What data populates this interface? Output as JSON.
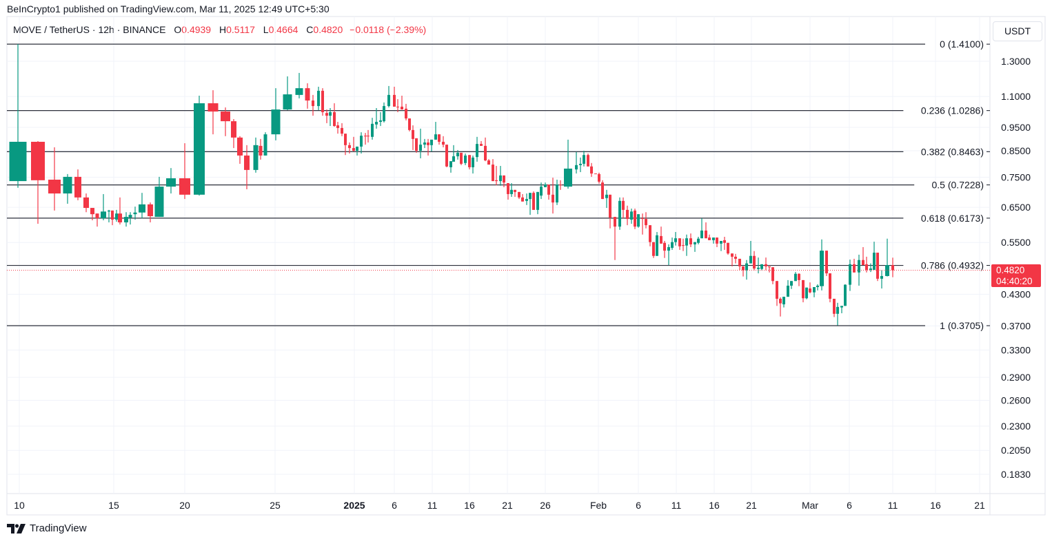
{
  "published": "BeInCrypto1 published on TradingView.com, Mar 11, 2025 12:49 UTC+5:30",
  "legend": {
    "symbol": "MOVE / TetherUS · 12h · BINANCE",
    "o_label": "O",
    "o": "0.4939",
    "h_label": "H",
    "h": "0.5117",
    "l_label": "L",
    "l": "0.4664",
    "c_label": "C",
    "c": "0.4820",
    "change": "−0.0118 (−2.39%)"
  },
  "currency_button": "USDT",
  "current_price": {
    "value": "0.4820",
    "countdown": "04:40:20",
    "color": "#F23645"
  },
  "footer": {
    "brand": "TradingView",
    "logo_icon": "tradingview-logo-icon"
  },
  "colors": {
    "up": "#089981",
    "down": "#F23645",
    "fib_line": "#2a2e39",
    "grid": "#f0f3fa"
  },
  "chart_data": {
    "type": "candlestick",
    "title": "",
    "y_scale": "log",
    "ylim": [
      0.17,
      1.45
    ],
    "grid": true,
    "y_ticks": [
      "1.3000",
      "1.1000",
      "0.9500",
      "0.8500",
      "0.7500",
      "0.6500",
      "0.5500",
      "0.4300",
      "0.3700",
      "0.3300",
      "0.2900",
      "0.2600",
      "0.2300",
      "0.2050",
      "0.1830"
    ],
    "x_ticks": [
      "10",
      "15",
      "20",
      "25",
      "2025",
      "6",
      "11",
      "16",
      "21",
      "26",
      "Feb",
      "6",
      "11",
      "16",
      "21",
      "Mar",
      "6",
      "11",
      "16",
      "21"
    ],
    "fib_levels": [
      {
        "label": "0 (1.4100)",
        "value": 1.41
      },
      {
        "label": "0.236 (1.0286)",
        "value": 1.0286
      },
      {
        "label": "0.382 (0.8463)",
        "value": 0.8463
      },
      {
        "label": "0.5 (0.7228)",
        "value": 0.7228
      },
      {
        "label": "0.618 (0.6173)",
        "value": 0.6173
      },
      {
        "label": "0.786 (0.4932)",
        "value": 0.4932
      },
      {
        "label": "1 (0.3705)",
        "value": 0.3705
      }
    ],
    "candles_ohlc": [
      [
        0.736,
        1.41,
        0.713,
        0.887
      ],
      [
        0.887,
        0.89,
        0.601,
        0.739
      ],
      [
        0.741,
        0.864,
        0.64,
        0.694
      ],
      [
        0.694,
        0.761,
        0.661,
        0.751
      ],
      [
        0.751,
        0.778,
        0.672,
        0.681
      ],
      [
        0.681,
        0.694,
        0.635,
        0.648
      ],
      [
        0.648,
        0.648,
        0.611,
        0.629
      ],
      [
        0.631,
        0.631,
        0.593,
        0.617
      ],
      [
        0.617,
        0.692,
        0.611,
        0.637
      ],
      [
        0.637,
        0.642,
        0.605,
        0.64
      ],
      [
        0.64,
        0.64,
        0.597,
        0.613
      ],
      [
        0.613,
        0.642,
        0.607,
        0.631
      ],
      [
        0.631,
        0.681,
        0.599,
        0.605
      ],
      [
        0.605,
        0.635,
        0.593,
        0.621
      ],
      [
        0.619,
        0.635,
        0.599,
        0.627
      ],
      [
        0.629,
        0.652,
        0.613,
        0.634
      ],
      [
        0.634,
        0.696,
        0.617,
        0.659
      ],
      [
        0.659,
        0.665,
        0.605,
        0.623
      ],
      [
        0.621,
        0.751,
        0.621,
        0.717
      ],
      [
        0.717,
        0.783,
        0.694,
        0.746
      ],
      [
        0.746,
        0.881,
        0.676,
        0.69
      ],
      [
        0.69,
        1.104,
        0.687,
        1.065
      ],
      [
        1.065,
        1.133,
        0.919,
        1.024
      ],
      [
        1.024,
        1.044,
        0.911,
        0.978
      ],
      [
        0.978,
        0.988,
        0.861,
        0.905
      ],
      [
        0.905,
        0.911,
        0.799,
        0.831
      ],
      [
        0.831,
        0.873,
        0.708,
        0.776
      ],
      [
        0.776,
        0.905,
        0.766,
        0.873
      ],
      [
        0.87,
        0.899,
        0.815,
        0.831
      ],
      [
        0.831,
        0.928,
        0.831,
        0.919
      ],
      [
        0.919,
        1.144,
        0.893,
        1.034
      ],
      [
        1.034,
        1.21,
        1.031,
        1.111
      ],
      [
        1.108,
        1.23,
        1.09,
        1.144
      ],
      [
        1.144,
        1.171,
        1.038,
        1.079
      ],
      [
        1.079,
        1.108,
        1.004,
        1.051
      ],
      [
        1.051,
        1.152,
        1.031,
        1.13
      ],
      [
        1.13,
        1.144,
        1.004,
        1.021
      ],
      [
        1.017,
        1.034,
        0.969,
        1.004
      ],
      [
        1.004,
        1.041,
        0.956,
        1.021
      ],
      [
        1.021,
        1.065,
        0.953,
        0.956
      ],
      [
        0.959,
        0.975,
        0.922,
        0.947
      ],
      [
        0.947,
        0.969,
        0.911,
        0.922
      ],
      [
        0.922,
        0.922,
        0.833,
        0.873
      ],
      [
        0.873,
        0.884,
        0.839,
        0.861
      ],
      [
        0.861,
        0.908,
        0.847,
        0.85
      ],
      [
        0.85,
        0.867,
        0.831,
        0.867
      ],
      [
        0.867,
        0.928,
        0.839,
        0.913
      ],
      [
        0.913,
        0.925,
        0.875,
        0.911
      ],
      [
        0.913,
        0.938,
        0.884,
        0.91
      ],
      [
        0.908,
        0.994,
        0.896,
        0.966
      ],
      [
        0.963,
        1.041,
        0.944,
        0.975
      ],
      [
        0.975,
        1.021,
        0.956,
        0.982
      ],
      [
        0.978,
        1.069,
        0.972,
        1.051
      ],
      [
        1.051,
        1.156,
        1.044,
        1.108
      ],
      [
        1.108,
        1.152,
        1.048,
        1.048
      ],
      [
        1.048,
        1.086,
        1.021,
        1.045
      ],
      [
        1.048,
        1.104,
        1.034,
        1.034
      ],
      [
        1.038,
        1.062,
        0.982,
        0.991
      ],
      [
        0.991,
        0.991,
        0.932,
        0.938
      ],
      [
        0.938,
        0.959,
        0.853,
        0.899
      ],
      [
        0.902,
        0.902,
        0.842,
        0.85
      ],
      [
        0.85,
        0.944,
        0.82,
        0.875
      ],
      [
        0.875,
        0.899,
        0.861,
        0.884
      ],
      [
        0.884,
        0.899,
        0.831,
        0.873
      ],
      [
        0.873,
        0.896,
        0.847,
        0.896
      ],
      [
        0.896,
        0.975,
        0.896,
        0.919
      ],
      [
        0.919,
        0.919,
        0.875,
        0.887
      ],
      [
        0.887,
        0.911,
        0.864,
        0.875
      ],
      [
        0.875,
        0.875,
        0.786,
        0.789
      ],
      [
        0.786,
        0.809,
        0.766,
        0.809
      ],
      [
        0.807,
        0.873,
        0.807,
        0.828
      ],
      [
        0.828,
        0.853,
        0.815,
        0.842
      ],
      [
        0.842,
        0.842,
        0.794,
        0.799
      ],
      [
        0.802,
        0.839,
        0.794,
        0.831
      ],
      [
        0.833,
        0.833,
        0.778,
        0.786
      ],
      [
        0.786,
        0.831,
        0.763,
        0.823
      ],
      [
        0.825,
        0.908,
        0.807,
        0.878
      ],
      [
        0.878,
        0.89,
        0.87,
        0.87
      ],
      [
        0.87,
        0.905,
        0.809,
        0.812
      ],
      [
        0.812,
        0.817,
        0.796,
        0.796
      ],
      [
        0.796,
        0.817,
        0.736,
        0.736
      ],
      [
        0.739,
        0.791,
        0.722,
        0.736
      ],
      [
        0.736,
        0.791,
        0.72,
        0.756
      ],
      [
        0.756,
        0.756,
        0.715,
        0.731
      ],
      [
        0.729,
        0.729,
        0.674,
        0.692
      ],
      [
        0.692,
        0.729,
        0.683,
        0.706
      ],
      [
        0.706,
        0.706,
        0.683,
        0.699
      ],
      [
        0.699,
        0.699,
        0.676,
        0.681
      ],
      [
        0.681,
        0.692,
        0.668,
        0.668
      ],
      [
        0.67,
        0.694,
        0.657,
        0.676
      ],
      [
        0.676,
        0.696,
        0.627,
        0.696
      ],
      [
        0.696,
        0.701,
        0.642,
        0.642
      ],
      [
        0.642,
        0.699,
        0.629,
        0.699
      ],
      [
        0.687,
        0.731,
        0.676,
        0.717
      ],
      [
        0.715,
        0.731,
        0.715,
        0.724
      ],
      [
        0.724,
        0.724,
        0.674,
        0.69
      ],
      [
        0.69,
        0.748,
        0.631,
        0.665
      ],
      [
        0.665,
        0.741,
        0.657,
        0.724
      ],
      [
        0.724,
        0.739,
        0.706,
        0.722
      ],
      [
        0.717,
        0.896,
        0.71,
        0.781
      ],
      [
        0.778,
        0.845,
        0.763,
        0.794
      ],
      [
        0.794,
        0.823,
        0.768,
        0.799
      ],
      [
        0.799,
        0.85,
        0.789,
        0.833
      ],
      [
        0.833,
        0.839,
        0.789,
        0.789
      ],
      [
        0.789,
        0.802,
        0.751,
        0.763
      ],
      [
        0.763,
        0.763,
        0.761,
        0.761
      ],
      [
        0.761,
        0.766,
        0.727,
        0.734
      ],
      [
        0.731,
        0.739,
        0.676,
        0.676
      ],
      [
        0.679,
        0.706,
        0.648,
        0.69
      ],
      [
        0.69,
        0.69,
        0.588,
        0.619
      ],
      [
        0.621,
        0.621,
        0.506,
        0.593
      ],
      [
        0.593,
        0.681,
        0.584,
        0.67
      ],
      [
        0.67,
        0.681,
        0.617,
        0.642
      ],
      [
        0.642,
        0.655,
        0.597,
        0.615
      ],
      [
        0.613,
        0.646,
        0.601,
        0.637
      ],
      [
        0.64,
        0.646,
        0.586,
        0.593
      ],
      [
        0.593,
        0.629,
        0.59,
        0.629
      ],
      [
        0.617,
        0.631,
        0.571,
        0.615
      ],
      [
        0.615,
        0.635,
        0.588,
        0.597
      ],
      [
        0.597,
        0.597,
        0.54,
        0.551
      ],
      [
        0.551,
        0.551,
        0.511,
        0.516
      ],
      [
        0.516,
        0.578,
        0.516,
        0.569
      ],
      [
        0.567,
        0.593,
        0.547,
        0.547
      ],
      [
        0.549,
        0.554,
        0.511,
        0.529
      ],
      [
        0.529,
        0.545,
        0.494,
        0.538
      ],
      [
        0.536,
        0.563,
        0.531,
        0.551
      ],
      [
        0.551,
        0.578,
        0.542,
        0.561
      ],
      [
        0.561,
        0.561,
        0.531,
        0.54
      ],
      [
        0.543,
        0.56,
        0.528,
        0.542
      ],
      [
        0.542,
        0.571,
        0.516,
        0.561
      ],
      [
        0.561,
        0.574,
        0.538,
        0.545
      ],
      [
        0.545,
        0.551,
        0.526,
        0.551
      ],
      [
        0.549,
        0.565,
        0.545,
        0.56
      ],
      [
        0.561,
        0.617,
        0.561,
        0.582
      ],
      [
        0.582,
        0.605,
        0.561,
        0.561
      ],
      [
        0.563,
        0.571,
        0.556,
        0.556
      ],
      [
        0.556,
        0.563,
        0.547,
        0.563
      ],
      [
        0.563,
        0.563,
        0.538,
        0.547
      ],
      [
        0.547,
        0.554,
        0.528,
        0.554
      ],
      [
        0.556,
        0.565,
        0.531,
        0.549
      ],
      [
        0.549,
        0.549,
        0.519,
        0.522
      ],
      [
        0.522,
        0.522,
        0.491,
        0.514
      ],
      [
        0.514,
        0.521,
        0.498,
        0.509
      ],
      [
        0.509,
        0.509,
        0.483,
        0.491
      ],
      [
        0.491,
        0.491,
        0.468,
        0.482
      ],
      [
        0.482,
        0.506,
        0.461,
        0.498
      ],
      [
        0.498,
        0.554,
        0.498,
        0.516
      ],
      [
        0.516,
        0.528,
        0.482,
        0.486
      ],
      [
        0.485,
        0.512,
        0.475,
        0.488
      ],
      [
        0.485,
        0.496,
        0.482,
        0.496
      ],
      [
        0.496,
        0.512,
        0.482,
        0.491
      ],
      [
        0.491,
        0.491,
        0.477,
        0.489
      ],
      [
        0.489,
        0.489,
        0.451,
        0.458
      ],
      [
        0.458,
        0.458,
        0.407,
        0.421
      ],
      [
        0.421,
        0.424,
        0.387,
        0.412
      ],
      [
        0.41,
        0.425,
        0.404,
        0.425
      ],
      [
        0.425,
        0.46,
        0.425,
        0.448
      ],
      [
        0.448,
        0.458,
        0.441,
        0.458
      ],
      [
        0.458,
        0.478,
        0.458,
        0.474
      ],
      [
        0.474,
        0.475,
        0.447,
        0.46
      ],
      [
        0.46,
        0.46,
        0.414,
        0.422
      ],
      [
        0.422,
        0.444,
        0.42,
        0.444
      ],
      [
        0.442,
        0.455,
        0.432,
        0.434
      ],
      [
        0.434,
        0.445,
        0.424,
        0.445
      ],
      [
        0.445,
        0.451,
        0.438,
        0.448
      ],
      [
        0.447,
        0.558,
        0.438,
        0.529
      ],
      [
        0.529,
        0.529,
        0.469,
        0.475
      ],
      [
        0.475,
        0.475,
        0.414,
        0.421
      ],
      [
        0.421,
        0.421,
        0.386,
        0.392
      ],
      [
        0.392,
        0.413,
        0.371,
        0.405
      ],
      [
        0.404,
        0.407,
        0.393,
        0.407
      ],
      [
        0.407,
        0.451,
        0.407,
        0.45
      ],
      [
        0.45,
        0.507,
        0.437,
        0.496
      ],
      [
        0.496,
        0.509,
        0.477,
        0.477
      ],
      [
        0.477,
        0.519,
        0.448,
        0.506
      ],
      [
        0.506,
        0.538,
        0.494,
        0.494
      ],
      [
        0.496,
        0.514,
        0.477,
        0.483
      ],
      [
        0.483,
        0.498,
        0.478,
        0.486
      ],
      [
        0.483,
        0.552,
        0.483,
        0.524
      ],
      [
        0.524,
        0.524,
        0.458,
        0.463
      ],
      [
        0.463,
        0.482,
        0.442,
        0.469
      ],
      [
        0.469,
        0.56,
        0.468,
        0.494
      ],
      [
        0.4939,
        0.5117,
        0.4664,
        0.482
      ]
    ]
  }
}
